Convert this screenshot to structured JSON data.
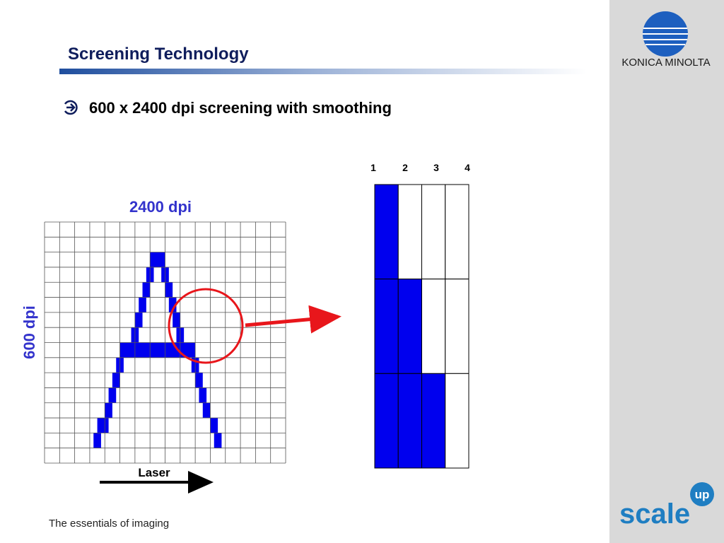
{
  "header": {
    "title": "Screening Technology"
  },
  "bullet": "600 x 2400 dpi screening with smoothing",
  "figure": {
    "horizontal_label": "2400 dpi",
    "vertical_label": "600 dpi",
    "laser_label": "Laser",
    "columns": [
      "1",
      "2",
      "3",
      "4"
    ]
  },
  "footer": {
    "tagline": "The essentials of imaging"
  },
  "logos": {
    "brand": "KONICA MINOLTA",
    "product": "scale",
    "product_badge": "up"
  }
}
